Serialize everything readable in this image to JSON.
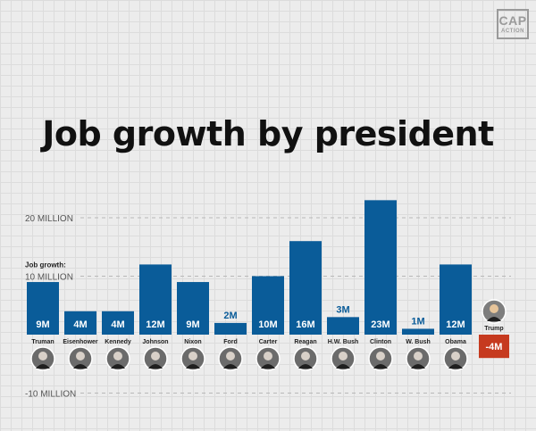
{
  "brand": {
    "logo_main": "CAP",
    "logo_sub": "ACTION"
  },
  "chart_data": {
    "type": "bar",
    "title": "Job growth by president",
    "series_label": "Job growth:",
    "y_ticks": [
      "20 MILLION",
      "10 MILLION",
      "-10 MILLION"
    ],
    "y_tick_values": [
      20,
      10,
      -10
    ],
    "ylim": [
      -10,
      23
    ],
    "unit": "million",
    "categories": [
      "Truman",
      "Eisenhower",
      "Kennedy",
      "Johnson",
      "Nixon",
      "Ford",
      "Carter",
      "Reagan",
      "H.W. Bush",
      "Clinton",
      "W. Bush",
      "Obama",
      "Trump"
    ],
    "values": [
      9,
      4,
      4,
      12,
      9,
      2,
      10,
      16,
      3,
      23,
      1,
      12,
      -4
    ],
    "data_labels": [
      "9M",
      "4M",
      "4M",
      "12M",
      "9M",
      "2M",
      "10M",
      "16M",
      "3M",
      "23M",
      "1M",
      "12M",
      "-4M"
    ],
    "colors": {
      "positive": "#0a5c99",
      "negative": "#c63a1f",
      "label_outside": "#0a5c99",
      "label_inside": "#ffffff",
      "gridline": "#b8b8b8",
      "axis_text": "#555555"
    }
  }
}
